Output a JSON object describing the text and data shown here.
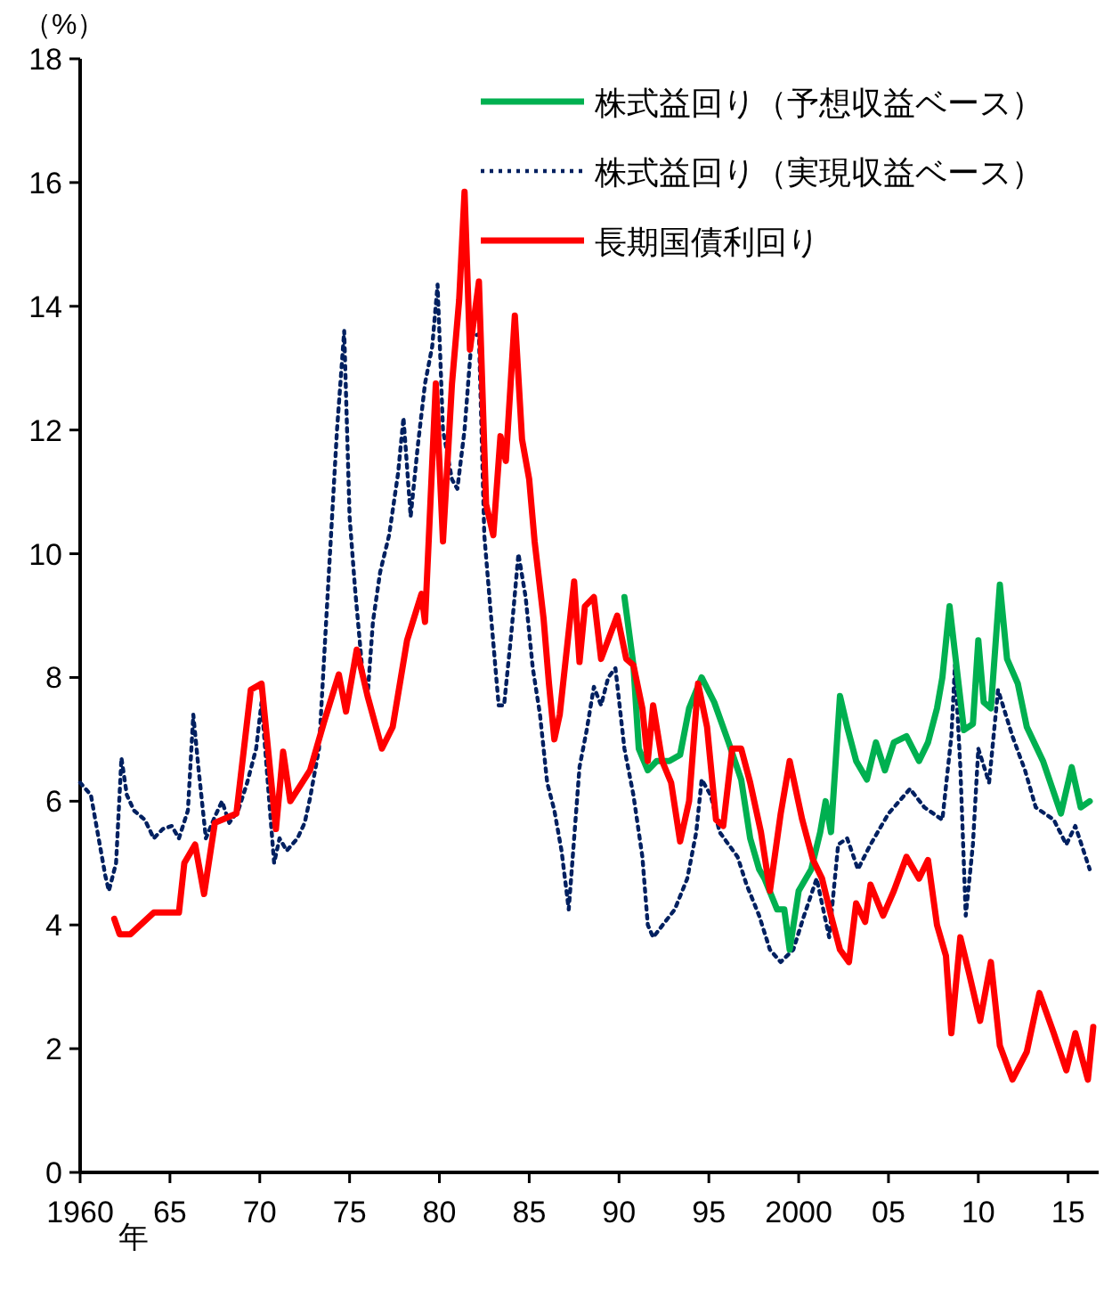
{
  "chart_data": {
    "type": "line",
    "ylabel": "（%）",
    "xlabel": "年",
    "xlim": [
      1960,
      2016.7
    ],
    "ylim": [
      0,
      18
    ],
    "xticks": [
      {
        "value": 1960,
        "label": "1960"
      },
      {
        "value": 1965,
        "label": "65"
      },
      {
        "value": 1970,
        "label": "70"
      },
      {
        "value": 1975,
        "label": "75"
      },
      {
        "value": 1980,
        "label": "80"
      },
      {
        "value": 1985,
        "label": "85"
      },
      {
        "value": 1990,
        "label": "90"
      },
      {
        "value": 1995,
        "label": "95"
      },
      {
        "value": 2000,
        "label": "2000"
      },
      {
        "value": 2005,
        "label": "05"
      },
      {
        "value": 2010,
        "label": "10"
      },
      {
        "value": 2015,
        "label": "15"
      }
    ],
    "yticks": [
      0,
      2,
      4,
      6,
      8,
      10,
      12,
      14,
      16,
      18
    ],
    "grid": false,
    "legend": "top right",
    "marker": "none",
    "series": [
      {
        "name": "株式益回り（予想収益ベース）",
        "color": "#00b050",
        "line_style": "solid",
        "x": [
          1990.3,
          1990.8,
          1991.1,
          1991.6,
          1992.1,
          1992.8,
          1993.4,
          1993.9,
          1994.6,
          1995.3,
          1996.1,
          1996.8,
          1997.3,
          1997.8,
          1998.1,
          1998.8,
          1999.2,
          1999.5,
          2000.0,
          2000.7,
          2001.2,
          2001.5,
          2001.8,
          2002.3,
          2002.7,
          2003.2,
          2003.8,
          2004.3,
          2004.8,
          2005.3,
          2006.0,
          2006.7,
          2007.2,
          2007.7,
          2008.0,
          2008.4,
          2008.7,
          2009.2,
          2009.7,
          2010.0,
          2010.3,
          2010.7,
          2011.2,
          2011.6,
          2012.2,
          2012.7,
          2013.6,
          2014.6,
          2015.2,
          2015.7,
          2016.2
        ],
        "values": [
          9.3,
          8.2,
          6.85,
          6.5,
          6.65,
          6.65,
          6.75,
          7.5,
          8.0,
          7.6,
          6.95,
          6.35,
          5.4,
          4.9,
          4.75,
          4.25,
          4.25,
          3.6,
          4.55,
          4.9,
          5.5,
          6.0,
          5.5,
          7.7,
          7.2,
          6.65,
          6.35,
          6.95,
          6.5,
          6.95,
          7.05,
          6.65,
          6.95,
          7.5,
          8.0,
          9.15,
          8.4,
          7.15,
          7.25,
          8.6,
          7.6,
          7.5,
          9.5,
          8.3,
          7.9,
          7.2,
          6.65,
          5.8,
          6.55,
          5.9,
          6.0
        ]
      },
      {
        "name": "株式益回り（実現収益ベース）",
        "color": "#002060",
        "line_style": "dotted",
        "x": [
          1960.0,
          1960.6,
          1961.4,
          1961.6,
          1962.0,
          1962.3,
          1962.6,
          1963.0,
          1963.6,
          1964.1,
          1964.6,
          1965.1,
          1965.5,
          1966.0,
          1966.3,
          1966.6,
          1967.0,
          1967.5,
          1967.9,
          1968.3,
          1968.8,
          1969.3,
          1969.8,
          1970.1,
          1970.5,
          1970.8,
          1971.1,
          1971.5,
          1972.1,
          1972.5,
          1972.8,
          1973.3,
          1973.8,
          1974.3,
          1974.7,
          1975.0,
          1975.3,
          1975.7,
          1976.0,
          1976.3,
          1976.7,
          1977.2,
          1977.7,
          1978.0,
          1978.4,
          1978.8,
          1979.2,
          1979.6,
          1979.9,
          1980.2,
          1980.7,
          1981.0,
          1981.4,
          1981.8,
          1982.2,
          1982.5,
          1982.9,
          1983.3,
          1983.6,
          1984.0,
          1984.4,
          1984.8,
          1985.2,
          1985.6,
          1986.0,
          1986.4,
          1986.8,
          1987.2,
          1987.5,
          1987.8,
          1988.2,
          1988.6,
          1989.0,
          1989.4,
          1989.8,
          1990.3,
          1990.8,
          1991.3,
          1991.6,
          1991.9,
          1993.1,
          1993.8,
          1994.3,
          1994.6,
          1995.1,
          1995.6,
          1996.1,
          1996.6,
          1997.1,
          1997.8,
          1998.4,
          1999.0,
          1999.7,
          2000.3,
          2001.0,
          2001.7,
          2002.2,
          2002.7,
          2003.3,
          2004.0,
          2005.0,
          2006.2,
          2007.0,
          2008.0,
          2008.5,
          2008.7,
          2009.0,
          2009.3,
          2009.7,
          2010.0,
          2010.6,
          2011.1,
          2011.9,
          2012.6,
          2013.2,
          2014.2,
          2014.9,
          2015.4,
          2016.2
        ],
        "values": [
          6.3,
          6.1,
          4.8,
          4.55,
          5.0,
          6.7,
          6.1,
          5.85,
          5.7,
          5.4,
          5.55,
          5.6,
          5.4,
          5.85,
          7.4,
          6.5,
          5.4,
          5.75,
          6.0,
          5.65,
          5.85,
          6.3,
          6.85,
          7.6,
          6.1,
          5.0,
          5.4,
          5.2,
          5.4,
          5.65,
          6.05,
          6.85,
          9.45,
          12.0,
          13.6,
          10.6,
          9.45,
          8.15,
          7.7,
          8.9,
          9.7,
          10.3,
          11.3,
          12.2,
          10.6,
          11.75,
          12.75,
          13.35,
          14.35,
          12.0,
          11.2,
          11.05,
          12.0,
          13.5,
          13.55,
          10.3,
          8.9,
          7.55,
          7.55,
          8.7,
          10.0,
          9.3,
          8.15,
          7.4,
          6.3,
          5.85,
          5.2,
          4.25,
          5.4,
          6.55,
          7.15,
          7.85,
          7.55,
          8.0,
          8.15,
          6.85,
          6.1,
          5.1,
          4.0,
          3.8,
          4.25,
          4.75,
          5.5,
          6.35,
          6.1,
          5.5,
          5.3,
          5.1,
          4.65,
          4.15,
          3.6,
          3.4,
          3.6,
          4.15,
          4.75,
          3.8,
          5.3,
          5.4,
          4.9,
          5.3,
          5.8,
          6.2,
          5.9,
          5.7,
          7.05,
          8.2,
          6.55,
          4.15,
          5.3,
          6.85,
          6.3,
          7.8,
          7.05,
          6.5,
          5.9,
          5.7,
          5.3,
          5.6,
          4.9
        ]
      },
      {
        "name": "長期国債利回り",
        "color": "#ff0000",
        "line_style": "solid",
        "x": [
          1961.9,
          1962.2,
          1962.8,
          1964.1,
          1965.5,
          1965.8,
          1966.4,
          1966.9,
          1967.5,
          1968.7,
          1969.5,
          1970.1,
          1970.9,
          1971.3,
          1971.7,
          1972.8,
          1973.6,
          1974.4,
          1974.8,
          1975.4,
          1976.0,
          1976.8,
          1977.4,
          1978.2,
          1979.0,
          1979.2,
          1979.8,
          1980.2,
          1980.7,
          1981.1,
          1981.4,
          1981.7,
          1982.2,
          1982.6,
          1983.0,
          1983.4,
          1983.7,
          1984.2,
          1984.6,
          1985.0,
          1985.3,
          1985.8,
          1986.1,
          1986.4,
          1986.7,
          1987.5,
          1987.8,
          1988.1,
          1988.6,
          1989.0,
          1989.9,
          1990.4,
          1990.8,
          1991.3,
          1991.6,
          1991.9,
          1992.4,
          1992.9,
          1993.4,
          1993.9,
          1994.4,
          1994.9,
          1995.4,
          1995.8,
          1996.3,
          1996.8,
          1997.3,
          1997.9,
          1998.4,
          1999.0,
          1999.5,
          2000.2,
          2000.8,
          2001.3,
          2001.8,
          2002.3,
          2002.8,
          2003.2,
          2003.7,
          2004.0,
          2004.7,
          2005.3,
          2006.0,
          2006.7,
          2007.2,
          2007.7,
          2008.2,
          2008.5,
          2009.0,
          2009.5,
          2010.1,
          2010.7,
          2011.2,
          2011.9,
          2012.7,
          2013.4,
          2014.2,
          2014.9,
          2015.4,
          2016.1,
          2016.4
        ],
        "values": [
          4.1,
          3.85,
          3.85,
          4.2,
          4.2,
          5.0,
          5.3,
          4.5,
          5.65,
          5.8,
          7.8,
          7.9,
          5.55,
          6.8,
          6.0,
          6.5,
          7.3,
          8.05,
          7.45,
          8.45,
          7.7,
          6.85,
          7.2,
          8.6,
          9.35,
          8.9,
          12.75,
          10.2,
          12.75,
          14.1,
          15.85,
          13.3,
          14.4,
          10.8,
          10.3,
          11.9,
          11.5,
          13.85,
          11.85,
          11.2,
          10.2,
          8.95,
          7.9,
          7.0,
          7.4,
          9.55,
          8.25,
          9.15,
          9.3,
          8.3,
          9.0,
          8.3,
          8.2,
          7.5,
          6.65,
          7.55,
          6.65,
          6.3,
          5.35,
          6.0,
          7.9,
          7.2,
          5.7,
          5.6,
          6.85,
          6.85,
          6.3,
          5.5,
          4.55,
          5.8,
          6.65,
          5.7,
          5.05,
          4.75,
          4.15,
          3.6,
          3.4,
          4.35,
          4.05,
          4.65,
          4.15,
          4.55,
          5.1,
          4.75,
          5.05,
          4.0,
          3.5,
          2.25,
          3.8,
          3.2,
          2.45,
          3.4,
          2.05,
          1.5,
          1.95,
          2.9,
          2.25,
          1.65,
          2.25,
          1.5,
          2.35
        ]
      }
    ]
  }
}
